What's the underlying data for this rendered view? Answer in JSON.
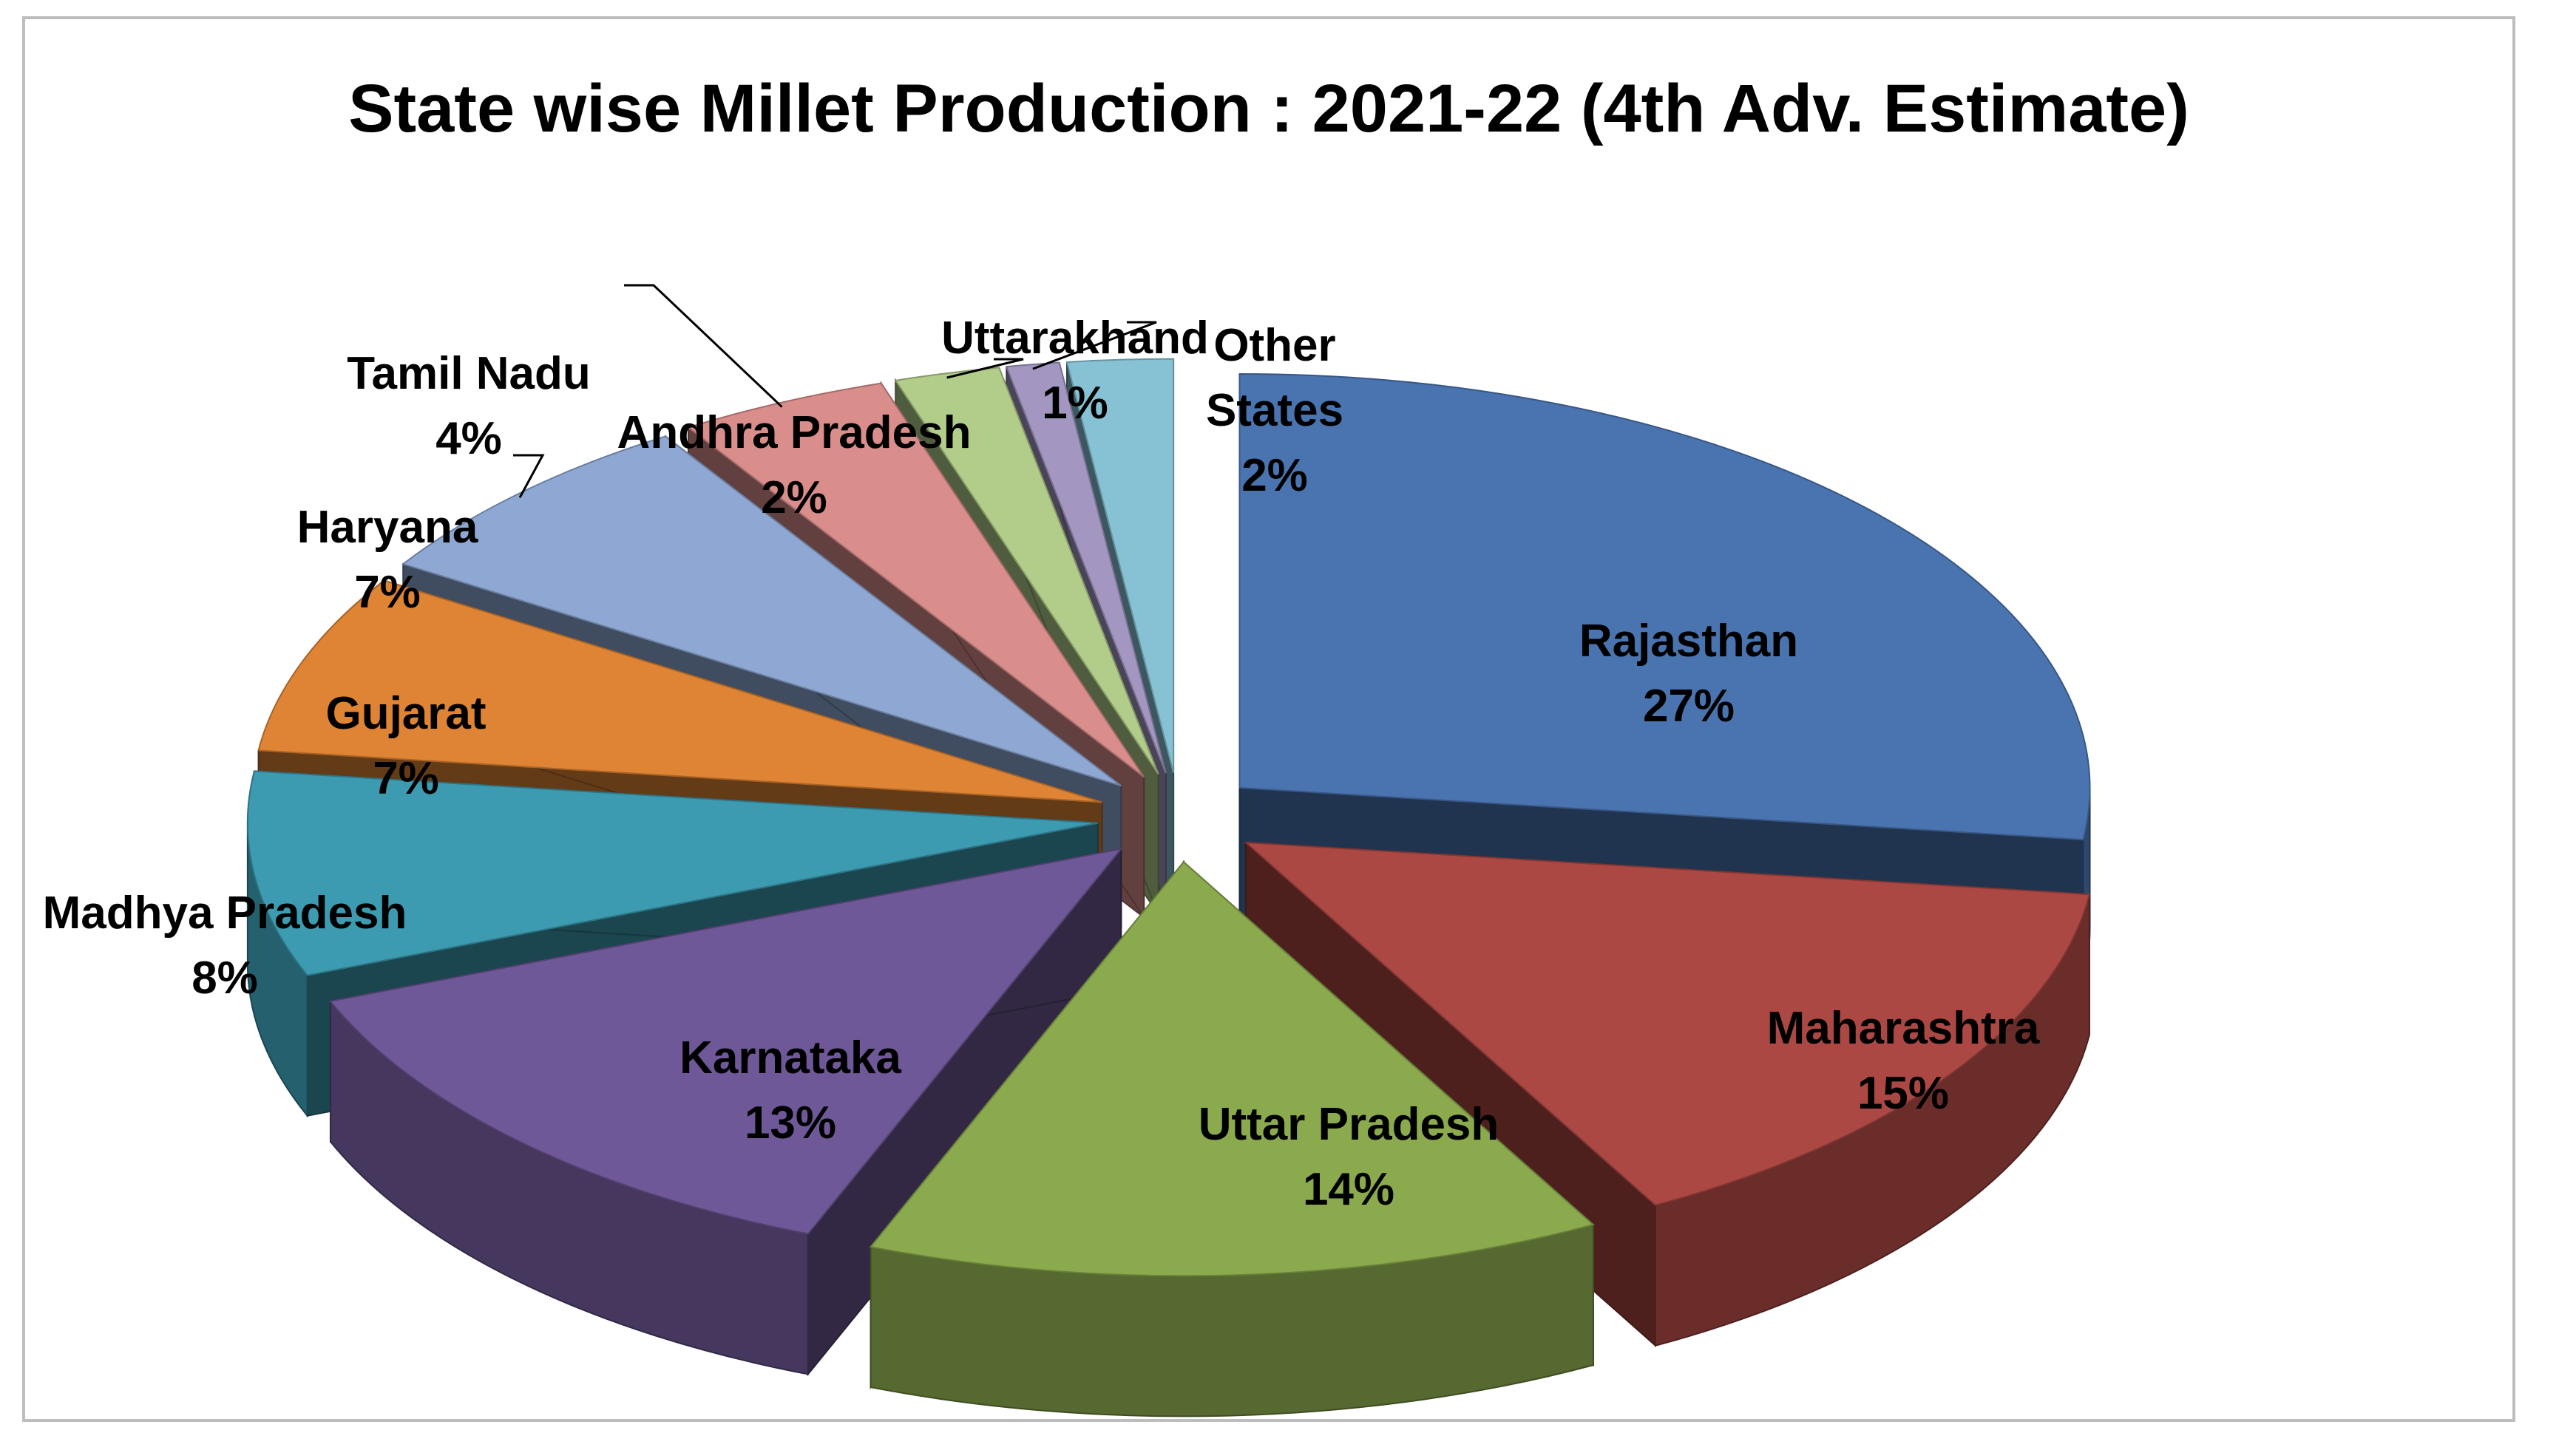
{
  "chart_data": {
    "type": "pie",
    "title": "State wise Millet Production : 2021-22 (4th Adv. Estimate)",
    "slices": [
      {
        "label": "Rajasthan",
        "percent_label": "27%",
        "value": 27,
        "color": "#4a74b0",
        "label_inside": true
      },
      {
        "label": "Maharashtra",
        "percent_label": "15%",
        "value": 15,
        "color": "#ac4843",
        "label_inside": true
      },
      {
        "label": "Uttar Pradesh",
        "percent_label": "14%",
        "value": 14,
        "color": "#8baa4d",
        "label_inside": true
      },
      {
        "label": "Karnataka",
        "percent_label": "13%",
        "value": 13,
        "color": "#6f5897",
        "label_inside": true
      },
      {
        "label": "Madhya Pradesh",
        "percent_label": "8%",
        "value": 8,
        "color": "#3c9bb1",
        "label_inside": false
      },
      {
        "label": "Gujarat",
        "percent_label": "7%",
        "value": 7,
        "color": "#de8434",
        "label_inside": false
      },
      {
        "label": "Haryana",
        "percent_label": "7%",
        "value": 7,
        "color": "#8fa8d3",
        "label_inside": false
      },
      {
        "label": "Tamil Nadu",
        "percent_label": "4%",
        "value": 4,
        "color": "#d98e8c",
        "label_inside": false
      },
      {
        "label": "Andhra Pradesh",
        "percent_label": "2%",
        "value": 2,
        "color": "#b2cc8a",
        "label_inside": false
      },
      {
        "label": "Uttarakhand",
        "percent_label": "1%",
        "value": 1,
        "color": "#a397c1",
        "label_inside": false
      },
      {
        "label": "Other States",
        "percent_label": "2%",
        "value": 2,
        "color": "#86c2d3",
        "label_inside": false
      }
    ],
    "legend": "none",
    "style": "3d-exploded-pie"
  }
}
